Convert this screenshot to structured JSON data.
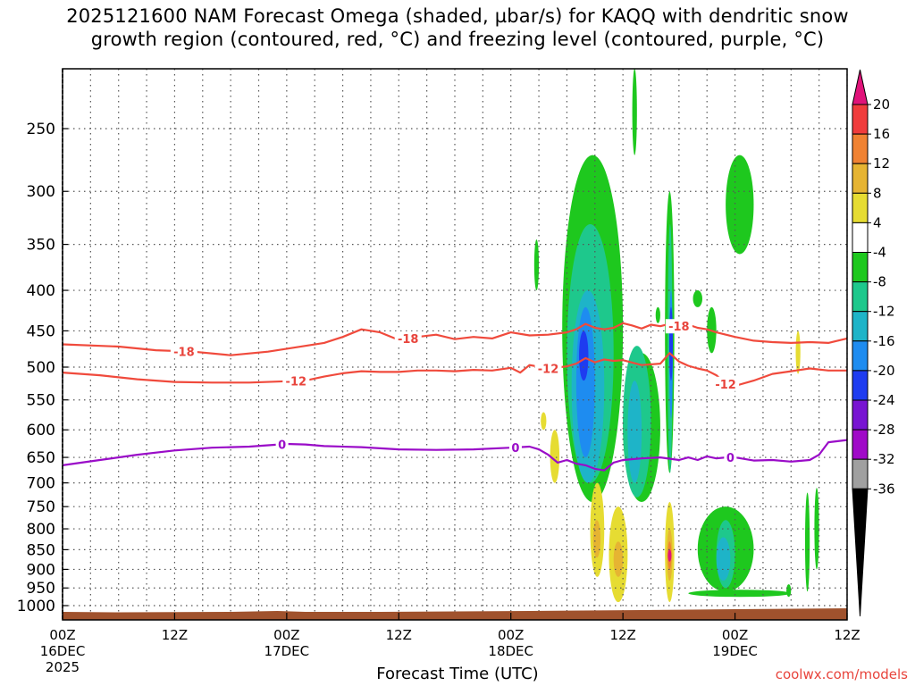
{
  "title": {
    "line1": "2025121600 NAM Forecast Omega (shaded, µbar/s) for KAQQ with dendritic snow",
    "line2": "growth region (contoured, red, °C) and freezing level (contoured, purple, °C)"
  },
  "credit": "coolwx.com/models",
  "chart_data": {
    "type": "heatmap",
    "title": "2025121600 NAM Forecast Omega (shaded, µbar/s) for KAQQ with dendritic snow growth region (contoured, red, °C) and freezing level (contoured, purple, °C)",
    "xlabel": "Forecast Time (UTC)",
    "ylabel": "",
    "xlim": [
      0,
      84
    ],
    "ylim": [
      1050,
      200
    ],
    "x_ticks": [
      {
        "hour": 0,
        "label": "00Z",
        "sub1": "16DEC",
        "sub2": "2025"
      },
      {
        "hour": 12,
        "label": "12Z",
        "sub1": "",
        "sub2": ""
      },
      {
        "hour": 24,
        "label": "00Z",
        "sub1": "17DEC",
        "sub2": ""
      },
      {
        "hour": 36,
        "label": "12Z",
        "sub1": "",
        "sub2": ""
      },
      {
        "hour": 48,
        "label": "00Z",
        "sub1": "18DEC",
        "sub2": ""
      },
      {
        "hour": 60,
        "label": "12Z",
        "sub1": "",
        "sub2": ""
      },
      {
        "hour": 72,
        "label": "00Z",
        "sub1": "19DEC",
        "sub2": ""
      },
      {
        "hour": 84,
        "label": "12Z",
        "sub1": "",
        "sub2": ""
      }
    ],
    "y_ticks": [
      250,
      300,
      350,
      400,
      450,
      500,
      550,
      600,
      650,
      700,
      750,
      800,
      850,
      900,
      950,
      1000
    ],
    "colorbar": {
      "levels": [
        "20",
        "16",
        "12",
        "8",
        "4",
        "-4",
        "-8",
        "-12",
        "-16",
        "-20",
        "-24",
        "-28",
        "-32",
        "-36"
      ],
      "colors": [
        "#e0137a",
        "#f03c3c",
        "#f08232",
        "#e6b432",
        "#e6dc32",
        "#ffffff",
        "#1ec81e",
        "#1ec88c",
        "#1eb4c8",
        "#1e8cf0",
        "#1e3cf0",
        "#7814d2",
        "#a00ac8",
        "#a0a0a0",
        "#000000"
      ]
    },
    "contour_series": [
      {
        "name": "-18",
        "color": "#f04a3c",
        "label_hours": [
          13,
          37,
          66
        ],
        "points": [
          [
            0,
            468
          ],
          [
            6,
            471
          ],
          [
            10,
            476
          ],
          [
            14,
            478
          ],
          [
            18,
            483
          ],
          [
            22,
            478
          ],
          [
            26,
            470
          ],
          [
            28,
            466
          ],
          [
            30,
            458
          ],
          [
            32,
            448
          ],
          [
            34,
            452
          ],
          [
            36,
            462
          ],
          [
            38,
            458
          ],
          [
            40,
            455
          ],
          [
            42,
            461
          ],
          [
            44,
            458
          ],
          [
            46,
            460
          ],
          [
            48,
            452
          ],
          [
            50,
            456
          ],
          [
            52,
            455
          ],
          [
            54,
            452
          ],
          [
            55,
            448
          ],
          [
            56,
            441
          ],
          [
            57,
            446
          ],
          [
            58,
            448
          ],
          [
            59,
            446
          ],
          [
            60,
            440
          ],
          [
            61,
            443
          ],
          [
            62,
            447
          ],
          [
            63,
            442
          ],
          [
            64,
            444
          ],
          [
            65,
            441
          ],
          [
            66,
            444
          ],
          [
            67,
            442
          ],
          [
            68,
            446
          ],
          [
            69,
            448
          ],
          [
            70,
            452
          ],
          [
            72,
            458
          ],
          [
            74,
            463
          ],
          [
            76,
            465
          ],
          [
            78,
            466
          ],
          [
            80,
            465
          ],
          [
            82,
            466
          ],
          [
            84,
            460
          ]
        ]
      },
      {
        "name": "-12",
        "color": "#f04a3c",
        "label_hours": [
          25,
          52,
          71
        ],
        "points": [
          [
            0,
            508
          ],
          [
            4,
            512
          ],
          [
            8,
            518
          ],
          [
            12,
            522
          ],
          [
            16,
            523
          ],
          [
            20,
            523
          ],
          [
            24,
            521
          ],
          [
            26,
            520
          ],
          [
            28,
            514
          ],
          [
            30,
            509
          ],
          [
            32,
            506
          ],
          [
            34,
            507
          ],
          [
            36,
            507
          ],
          [
            38,
            505
          ],
          [
            40,
            505
          ],
          [
            42,
            506
          ],
          [
            44,
            504
          ],
          [
            46,
            505
          ],
          [
            48,
            501
          ],
          [
            49,
            508
          ],
          [
            50,
            497
          ],
          [
            52,
            502
          ],
          [
            54,
            499
          ],
          [
            55,
            495
          ],
          [
            56,
            487
          ],
          [
            57,
            493
          ],
          [
            58,
            489
          ],
          [
            59,
            491
          ],
          [
            60,
            490
          ],
          [
            62,
            497
          ],
          [
            64,
            495
          ],
          [
            65,
            480
          ],
          [
            66,
            492
          ],
          [
            67,
            498
          ],
          [
            68,
            502
          ],
          [
            69,
            505
          ],
          [
            70,
            512
          ],
          [
            71,
            525
          ],
          [
            72,
            528
          ],
          [
            74,
            520
          ],
          [
            76,
            510
          ],
          [
            78,
            506
          ],
          [
            80,
            502
          ],
          [
            82,
            505
          ],
          [
            84,
            505
          ]
        ]
      },
      {
        "name": "0",
        "color": "#9a0cc8",
        "label_hours": [
          23.5,
          48.5,
          71.5
        ],
        "points": [
          [
            0,
            665
          ],
          [
            4,
            655
          ],
          [
            8,
            645
          ],
          [
            12,
            637
          ],
          [
            16,
            632
          ],
          [
            20,
            630
          ],
          [
            24,
            625
          ],
          [
            26,
            626
          ],
          [
            28,
            629
          ],
          [
            32,
            631
          ],
          [
            36,
            635
          ],
          [
            40,
            636
          ],
          [
            44,
            635
          ],
          [
            48,
            632
          ],
          [
            50,
            630
          ],
          [
            51,
            635
          ],
          [
            52,
            645
          ],
          [
            53,
            660
          ],
          [
            54,
            655
          ],
          [
            55,
            662
          ],
          [
            56,
            665
          ],
          [
            57,
            672
          ],
          [
            58,
            675
          ],
          [
            59,
            660
          ],
          [
            60,
            655
          ],
          [
            62,
            652
          ],
          [
            64,
            650
          ],
          [
            66,
            655
          ],
          [
            67,
            650
          ],
          [
            68,
            655
          ],
          [
            69,
            648
          ],
          [
            70,
            652
          ],
          [
            71,
            650
          ],
          [
            72,
            650
          ],
          [
            74,
            656
          ],
          [
            76,
            655
          ],
          [
            78,
            658
          ],
          [
            80,
            655
          ],
          [
            81,
            645
          ],
          [
            82,
            622
          ],
          [
            84,
            618
          ]
        ]
      }
    ],
    "omega_shading": [
      {
        "band": "-8 to -4",
        "color": "#1ec81e",
        "cells": [
          [
            53.5,
            60,
            270,
            740
          ],
          [
            60,
            64,
            480,
            740
          ],
          [
            63.5,
            64,
            420,
            440
          ],
          [
            64.5,
            65.5,
            300,
            680
          ],
          [
            71,
            74,
            270,
            360
          ],
          [
            67.5,
            68.5,
            400,
            420
          ],
          [
            69,
            70,
            420,
            480
          ],
          [
            50.5,
            51,
            345,
            400
          ],
          [
            61,
            61.5,
            210,
            270
          ],
          [
            68,
            74,
            750,
            960
          ],
          [
            67,
            78,
            955,
            975
          ],
          [
            77.5,
            78,
            940,
            975
          ],
          [
            79.5,
            80,
            720,
            960
          ],
          [
            80.5,
            81,
            710,
            900
          ]
        ]
      },
      {
        "band": "-12 to -8",
        "color": "#1ec88c",
        "cells": [
          [
            54,
            59,
            330,
            700
          ],
          [
            60,
            63,
            470,
            730
          ],
          [
            64.8,
            65.3,
            330,
            680
          ],
          [
            70,
            72,
            780,
            950
          ]
        ]
      },
      {
        "band": "-16 to -12",
        "color": "#1eb4c8",
        "cells": [
          [
            54.5,
            58,
            400,
            700
          ],
          [
            60.5,
            62,
            520,
            700
          ],
          [
            70,
            71.5,
            820,
            930
          ]
        ]
      },
      {
        "band": "-20 to -16",
        "color": "#1e8cf0",
        "cells": [
          [
            55,
            57,
            420,
            650
          ],
          [
            65,
            65.3,
            400,
            580
          ]
        ]
      },
      {
        "band": "-24 to -20",
        "color": "#1e3cf0",
        "cells": [
          [
            55.3,
            56.3,
            450,
            520
          ],
          [
            65,
            65.3,
            420,
            520
          ]
        ]
      },
      {
        "band": "4 to 8",
        "color": "#e6dc32",
        "cells": [
          [
            51.2,
            51.8,
            570,
            600
          ],
          [
            52.2,
            53.2,
            600,
            700
          ],
          [
            56.5,
            58,
            700,
            920
          ],
          [
            58.5,
            60.5,
            750,
            990
          ],
          [
            64.5,
            65.5,
            740,
            990
          ],
          [
            78.5,
            79,
            450,
            510
          ]
        ]
      },
      {
        "band": "8 to 12",
        "color": "#e6b432",
        "cells": [
          [
            56.8,
            57.6,
            780,
            870
          ],
          [
            59,
            60,
            830,
            920
          ],
          [
            64.7,
            65.3,
            800,
            930
          ]
        ]
      },
      {
        "band": "12 to 16",
        "color": "#f08232",
        "cells": [
          [
            64.8,
            65.2,
            830,
            900
          ]
        ]
      },
      {
        "band": "16 to 20",
        "color": "#e0137a",
        "cells": [
          [
            64.85,
            65.15,
            850,
            880
          ]
        ]
      }
    ],
    "terrain_color": "#a0522d"
  },
  "axes": {
    "xtitle": "Forecast Time (UTC)"
  }
}
